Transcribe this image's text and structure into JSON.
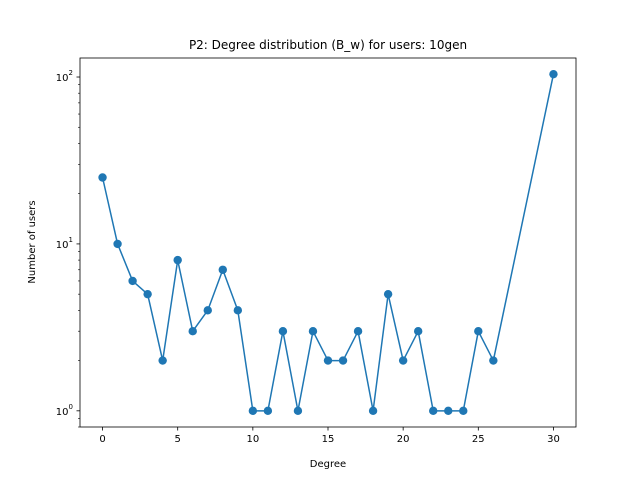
{
  "chart_data": {
    "type": "line",
    "title": "P2: Degree distribution (B_w) for users: 10gen",
    "xlabel": "Degree",
    "ylabel": "Number of users",
    "yscale": "log",
    "xlim": [
      -1.5,
      31.5
    ],
    "ylim": [
      0.8,
      130
    ],
    "grid": false,
    "color": "#1f77b4",
    "marker": "circle",
    "x_ticks": [
      0,
      5,
      10,
      15,
      20,
      25,
      30
    ],
    "y_ticks": [
      {
        "value": 1,
        "base": "10",
        "exp": "0"
      },
      {
        "value": 10,
        "base": "10",
        "exp": "1"
      },
      {
        "value": 100,
        "base": "10",
        "exp": "2"
      }
    ],
    "series": [
      {
        "x": [
          0,
          1,
          2,
          3,
          4,
          5,
          6,
          7,
          8,
          9,
          10,
          11,
          12,
          13,
          14,
          15,
          16,
          17,
          18,
          19,
          20,
          21,
          22,
          23,
          24,
          25,
          26,
          30
        ],
        "values": [
          25,
          10,
          6,
          5,
          2,
          8,
          3,
          4,
          7,
          4,
          1,
          1,
          3,
          1,
          3,
          2,
          2,
          3,
          1,
          5,
          2,
          3,
          1,
          1,
          1,
          3,
          2,
          104
        ]
      }
    ]
  }
}
